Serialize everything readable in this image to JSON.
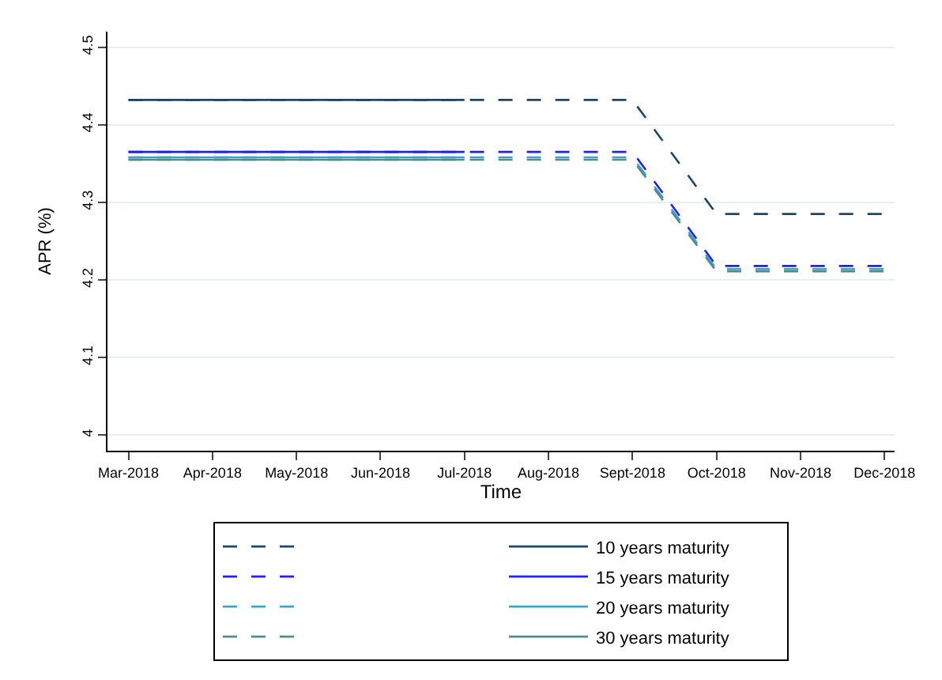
{
  "chart_data": {
    "type": "line",
    "xlabel": "Time",
    "ylabel": "APR (%)",
    "categories": [
      "Mar-2018",
      "Apr-2018",
      "May-2018",
      "Jun-2018",
      "Jul-2018",
      "Aug-2018",
      "Sept-2018",
      "Oct-2018",
      "Nov-2018",
      "Dec-2018"
    ],
    "ylim": [
      3.98,
      4.52
    ],
    "yticks": [
      4,
      4.1,
      4.2,
      4.3,
      4.4,
      4.5
    ],
    "grid": "y",
    "legend": "bottom",
    "marker": "none",
    "series": [
      {
        "color": "#1a476f",
        "line_style": "dashed",
        "values": [
          4.432,
          4.432,
          4.432,
          4.432,
          4.432,
          4.432,
          4.432,
          4.285,
          4.285,
          4.285
        ]
      },
      {
        "name": "10 years maturity",
        "color": "#1a476f",
        "line_style": "solid",
        "values": [
          4.432,
          4.432,
          4.432,
          4.432,
          4.432,
          null,
          null,
          null,
          null,
          null
        ]
      },
      {
        "color": "#1f1fff",
        "line_style": "dashed",
        "values": [
          4.365,
          4.365,
          4.365,
          4.365,
          4.365,
          4.365,
          4.365,
          4.218,
          4.218,
          4.218
        ]
      },
      {
        "name": "15 years maturity",
        "color": "#1f1fff",
        "line_style": "solid",
        "values": [
          4.365,
          4.365,
          4.365,
          4.365,
          4.365,
          null,
          null,
          null,
          null,
          null
        ]
      },
      {
        "color": "#3ca3cf",
        "line_style": "dashed",
        "values": [
          4.358,
          4.358,
          4.358,
          4.358,
          4.358,
          4.358,
          4.358,
          4.214,
          4.214,
          4.214
        ]
      },
      {
        "name": "20 years maturity",
        "color": "#3ca3cf",
        "line_style": "solid",
        "values": [
          4.358,
          4.358,
          4.358,
          4.358,
          4.358,
          null,
          null,
          null,
          null,
          null
        ]
      },
      {
        "color": "#4f8d89",
        "line_style": "dashed",
        "values": [
          4.355,
          4.355,
          4.355,
          4.355,
          4.355,
          4.355,
          4.355,
          4.211,
          4.211,
          4.211
        ]
      },
      {
        "name": "30 years maturity",
        "color": "#4f8d89",
        "line_style": "solid",
        "values": [
          4.355,
          4.355,
          4.355,
          4.355,
          4.355,
          null,
          null,
          null,
          null,
          null
        ]
      }
    ]
  }
}
